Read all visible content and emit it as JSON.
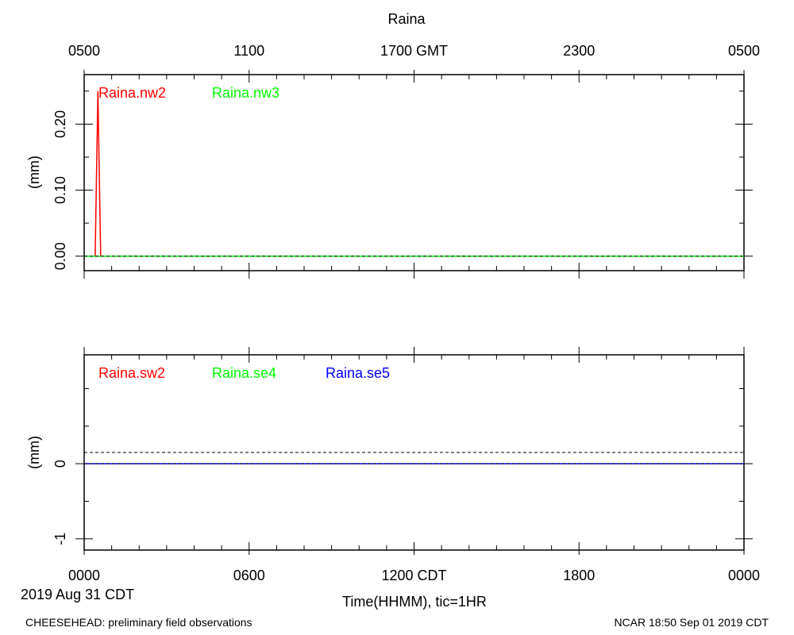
{
  "header": {
    "title": "Raina",
    "gmt_ticks": [
      "0500",
      "1100",
      "1700 GMT",
      "2300",
      "0500"
    ]
  },
  "footer": {
    "left": "CHEESEHEAD: preliminary field observations",
    "right": "NCAR 18:50 Sep 01 2019 CDT",
    "date_label": "2019 Aug 31 CDT"
  },
  "chart_data": [
    {
      "type": "line",
      "title": "Raina",
      "ylabel": "(mm)",
      "ylim": [
        -0.022,
        0.275
      ],
      "xlim": [
        0,
        24
      ],
      "yticks": [
        0.0,
        0.1,
        0.2
      ],
      "ytick_labels": [
        "0.00",
        "0.10",
        "0.20"
      ],
      "series": [
        {
          "name": "Raina.nw2",
          "color": "#ff0000",
          "x": [
            0,
            0.4,
            0.5,
            0.6,
            24
          ],
          "y": [
            0,
            0,
            0.25,
            0,
            0
          ]
        },
        {
          "name": "Raina.nw3",
          "color": "#00ff00",
          "x": [
            0,
            24
          ],
          "y": [
            0,
            0
          ]
        }
      ]
    },
    {
      "type": "line",
      "ylabel": "(mm)",
      "ylim": [
        -1.15,
        1.45
      ],
      "xlim": [
        0,
        24
      ],
      "yticks": [
        -1,
        0
      ],
      "ytick_labels": [
        "-1",
        "0"
      ],
      "xlabel": "Time(HHMM), tic=1HR",
      "xtick_labels": [
        "0000",
        "0600",
        "1200 CDT",
        "1800",
        "0000"
      ],
      "series": [
        {
          "name": "Raina.sw2",
          "color": "#ff0000",
          "x": [
            0,
            24
          ],
          "y": [
            0,
            0
          ]
        },
        {
          "name": "Raina.se4",
          "color": "#00ff00",
          "x": [
            0,
            24
          ],
          "y": [
            0,
            0
          ]
        },
        {
          "name": "Raina.se5",
          "color": "#0000ff",
          "x": [
            0,
            24
          ],
          "y": [
            0,
            0
          ]
        }
      ]
    }
  ]
}
